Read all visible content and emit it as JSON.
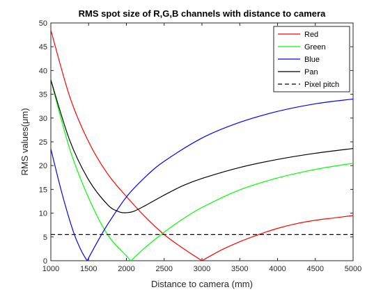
{
  "chart_data": {
    "type": "line",
    "title": "RMS spot size of R,G,B channels with distance to camera",
    "xlabel": "Distance to camera (mm)",
    "ylabel": "RMS values(μm)",
    "xlim": [
      1000,
      5000
    ],
    "ylim": [
      0,
      50
    ],
    "xticks": [
      1000,
      1500,
      2000,
      2500,
      3000,
      3500,
      4000,
      4500,
      5000
    ],
    "yticks": [
      0,
      5,
      10,
      15,
      20,
      25,
      30,
      35,
      40,
      45,
      50
    ],
    "grid": false,
    "legend_position": "top-right",
    "series": [
      {
        "name": "Red",
        "color": "#ff0000",
        "x": [
          1000,
          1250,
          1500,
          1750,
          2000,
          2250,
          2500,
          2750,
          3000,
          3250,
          3500,
          3750,
          4000,
          4250,
          4500,
          4750,
          5000
        ],
        "y": [
          48.5,
          34.5,
          25,
          18.3,
          13.5,
          9.2,
          5.5,
          2.6,
          0,
          2.2,
          4.0,
          5.5,
          6.8,
          7.8,
          8.5,
          9.0,
          9.5
        ]
      },
      {
        "name": "Green",
        "color": "#00ff00",
        "x": [
          1000,
          1250,
          1500,
          1750,
          2000,
          2060,
          2250,
          2500,
          2750,
          3000,
          3500,
          4000,
          4500,
          5000
        ],
        "y": [
          38,
          23.5,
          13.2,
          5.5,
          1.0,
          0,
          2.8,
          6.0,
          8.8,
          11.2,
          14.9,
          17.4,
          19.2,
          20.5
        ]
      },
      {
        "name": "Blue",
        "color": "#0000ff",
        "x": [
          1000,
          1150,
          1300,
          1400,
          1480,
          1600,
          1750,
          2000,
          2250,
          2500,
          3000,
          3500,
          4000,
          4500,
          5000
        ],
        "y": [
          23.5,
          14,
          6,
          2.2,
          0,
          3.5,
          7.6,
          13.4,
          17.6,
          20.9,
          25.8,
          29.1,
          31.4,
          33.0,
          34.0
        ]
      },
      {
        "name": "Pan",
        "color": "#000000",
        "x": [
          1000,
          1250,
          1500,
          1750,
          1900,
          2000,
          2100,
          2250,
          2500,
          2750,
          3000,
          3500,
          4000,
          4500,
          5000
        ],
        "y": [
          38,
          25.3,
          17.0,
          11.8,
          10.3,
          10.1,
          10.4,
          11.6,
          13.8,
          15.8,
          17.3,
          19.6,
          21.3,
          22.6,
          23.6
        ]
      },
      {
        "name": "Pixel pitch",
        "color": "#000000",
        "dashed": true,
        "x": [
          1000,
          5000
        ],
        "y": [
          5.5,
          5.5
        ]
      }
    ]
  }
}
